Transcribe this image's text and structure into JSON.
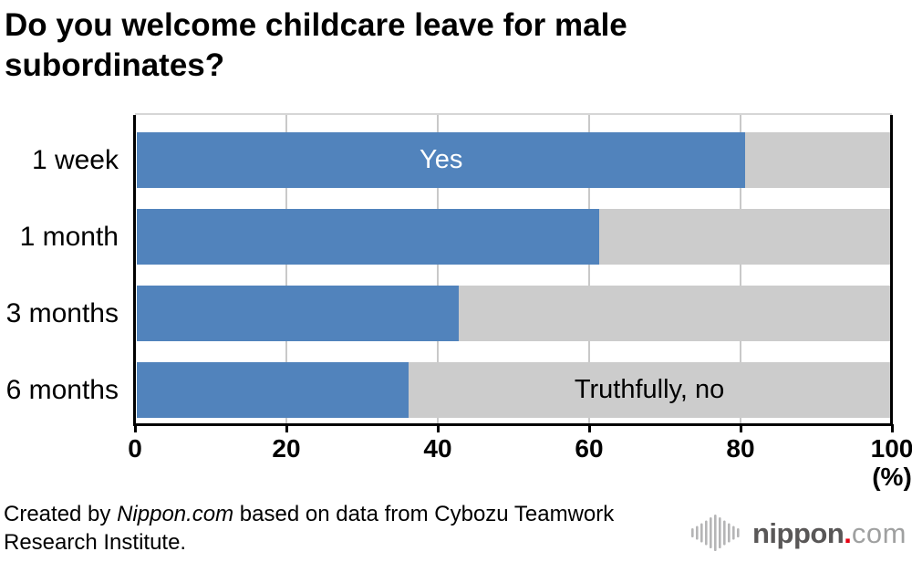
{
  "title": {
    "line1": "Do you welcome childcare leave for male",
    "line2": "subordinates?"
  },
  "chart_data": {
    "type": "bar",
    "orientation": "horizontal",
    "stacked": true,
    "categories": [
      "1 week",
      "1 month",
      "3 months",
      "6 months"
    ],
    "series": [
      {
        "name": "Yes",
        "color": "#5183BC",
        "values": [
          80.8,
          61.4,
          42.7,
          36.1
        ]
      },
      {
        "name": "Truthfully, no",
        "color": "#CCCCCC",
        "values": [
          19.2,
          38.6,
          57.3,
          63.9
        ]
      }
    ],
    "annotations": [
      {
        "text": "Yes",
        "row": 0,
        "segment": 0,
        "color": "#ffffff"
      },
      {
        "text": "Truthfully, no",
        "row": 3,
        "segment": 1,
        "color": "#000000"
      }
    ],
    "xticks": [
      0,
      20,
      40,
      60,
      80,
      100
    ],
    "xlim": [
      0,
      100
    ],
    "unit_label": "(%)",
    "grid": true,
    "legend_position": "labels-inside-bars"
  },
  "footer": {
    "credit_prefix": "Created by ",
    "credit_source": "Nippon.com",
    "credit_line1_rest": " based on data from Cybozu Teamwork",
    "credit_line2": "Research Institute."
  },
  "logo": {
    "icon": "soundwave-icon",
    "brand_main": "nippon",
    "brand_dot": ".",
    "brand_tld": "com",
    "colors": {
      "main": "#595757",
      "dot": "#e60012",
      "tld": "#9fa0a0",
      "icon": "#b5b5b6"
    }
  }
}
